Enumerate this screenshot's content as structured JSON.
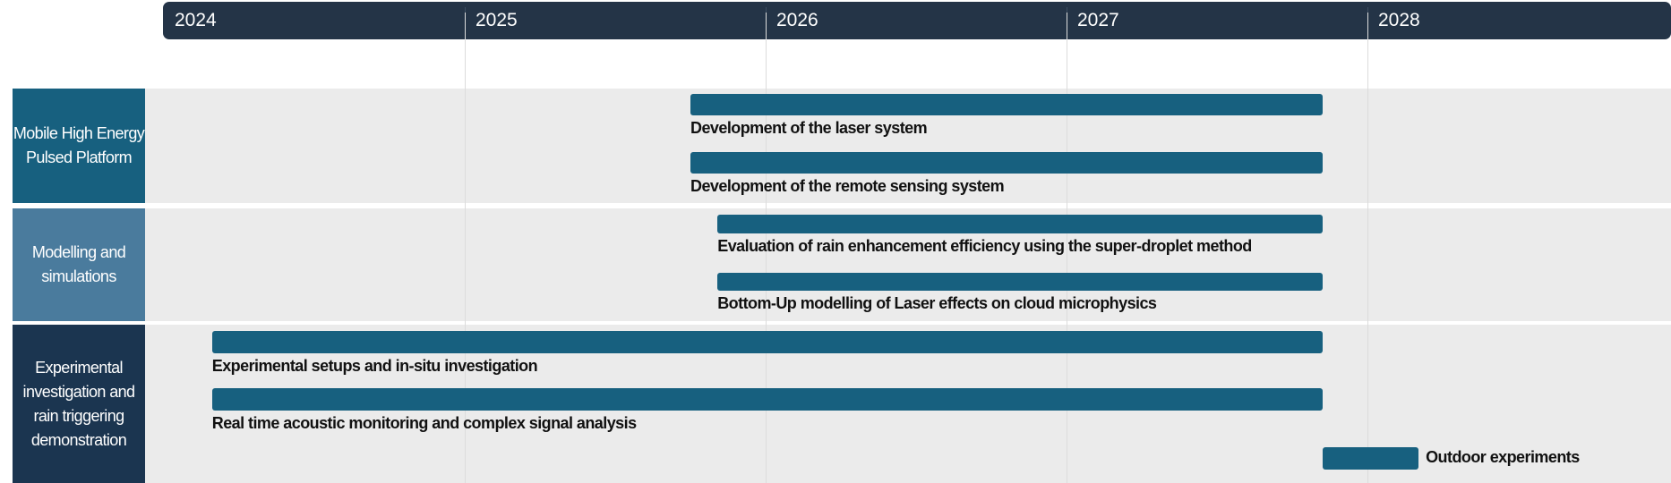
{
  "timeline": {
    "years": [
      "2024",
      "2025",
      "2026",
      "2027",
      "2028"
    ],
    "header_color": "#243447"
  },
  "groups": [
    {
      "label": "Mobile High Energy Pulsed Platform",
      "color": "#17607f"
    },
    {
      "label": "Modelling and simulations",
      "color": "#4a7b9d"
    },
    {
      "label": "Experimental investigation and rain triggering demonstration",
      "color": "#1b3550"
    }
  ],
  "bar_color": "#17607f",
  "tasks": [
    {
      "group": 0,
      "label": "Development of the laser system",
      "start": 2025.75,
      "end": 2027.85
    },
    {
      "group": 0,
      "label": "Development of the remote sensing system",
      "start": 2025.75,
      "end": 2027.85
    },
    {
      "group": 1,
      "label": "Evaluation of rain enhancement efficiency using the super-droplet method",
      "start": 2025.84,
      "end": 2027.85
    },
    {
      "group": 1,
      "label": "Bottom-Up modelling of Laser effects on cloud microphysics",
      "start": 2025.84,
      "end": 2027.85
    },
    {
      "group": 2,
      "label": "Experimental setups and in-situ investigation",
      "start": 2024.16,
      "end": 2027.85
    },
    {
      "group": 2,
      "label": "Real time acoustic monitoring and complex signal analysis",
      "start": 2024.16,
      "end": 2027.85
    },
    {
      "group": 2,
      "label": "Outdoor experiments",
      "start": 2027.85,
      "end": 2028.17,
      "label_position": "right"
    }
  ]
}
